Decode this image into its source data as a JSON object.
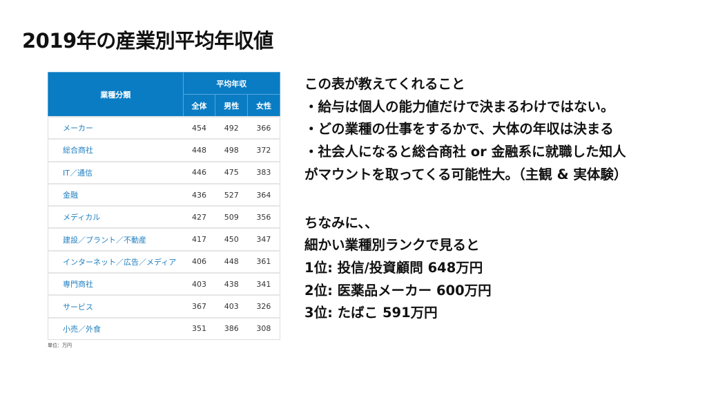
{
  "title": "2019年の産業別平均年収値",
  "table": {
    "header_category": "業種分類",
    "header_group": "平均年収",
    "columns": [
      "全体",
      "男性",
      "女性"
    ],
    "rows": [
      {
        "category": "メーカー",
        "values": [
          "454",
          "492",
          "366"
        ]
      },
      {
        "category": "総合商社",
        "values": [
          "448",
          "498",
          "372"
        ]
      },
      {
        "category": "IT／通信",
        "values": [
          "446",
          "475",
          "383"
        ]
      },
      {
        "category": "金融",
        "values": [
          "436",
          "527",
          "364"
        ]
      },
      {
        "category": "メディカル",
        "values": [
          "427",
          "509",
          "356"
        ]
      },
      {
        "category": "建設／プラント／不動産",
        "values": [
          "417",
          "450",
          "347"
        ]
      },
      {
        "category": "インターネット／広告／メディア",
        "values": [
          "406",
          "448",
          "361"
        ]
      },
      {
        "category": "専門商社",
        "values": [
          "403",
          "438",
          "341"
        ]
      },
      {
        "category": "サービス",
        "values": [
          "367",
          "403",
          "326"
        ]
      },
      {
        "category": "小売／外食",
        "values": [
          "351",
          "386",
          "308"
        ]
      }
    ],
    "unit_note": "単位：万円",
    "header_color": "#0a7cc4",
    "category_color": "#1f7fc0"
  },
  "notes": {
    "block1": [
      "この表が教えてくれること",
      "・給与は個人の能力値だけで決まるわけではない。",
      "・どの業種の仕事をするかで、大体の年収は決まる",
      "・社会人になると総合商社 or 金融系に就職した知人",
      "がマウントを取ってくる可能性大。（主観 & 実体験）"
    ],
    "block2": [
      "ちなみに、、",
      "細かい業種別ランクで見ると",
      "1位: 投信/投資顧問 648万円",
      "2位: 医薬品メーカー 600万円",
      "3位: たばこ 591万円"
    ]
  }
}
